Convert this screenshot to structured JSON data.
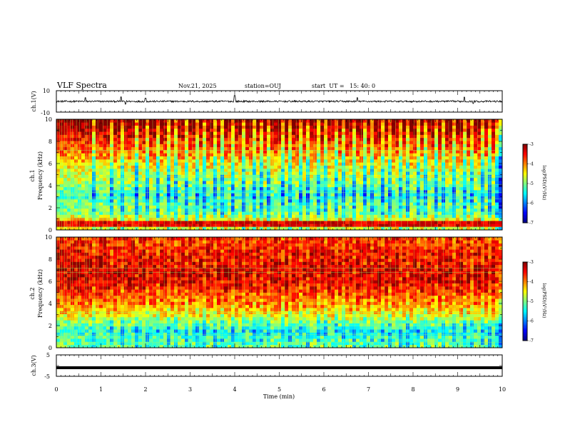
{
  "header": {
    "title": "VLF Spectra",
    "date": "Nov.21, 2025",
    "station": "station=OUJ",
    "start_ut": "start  UT =   15: 40: 0"
  },
  "chart_data": [
    {
      "type": "line",
      "name": "ch.1 waveform",
      "ylabel": "ch.1(V)",
      "ylim": [
        -10,
        10
      ],
      "y_tick_labels": [
        "10",
        "-10"
      ],
      "baseline": 0,
      "spikes": [
        {
          "x": 0.65,
          "y": 3.5
        },
        {
          "x": 1.45,
          "y": 4.2
        },
        {
          "x": 1.55,
          "y": -2.5
        },
        {
          "x": 2.0,
          "y": 3
        },
        {
          "x": 4.0,
          "y": 5.5
        },
        {
          "x": 6.75,
          "y": 3.5
        },
        {
          "x": 9.15,
          "y": 4
        },
        {
          "x": 9.35,
          "y": -2
        }
      ]
    },
    {
      "type": "heatmap",
      "name": "ch.1 spectrogram",
      "ylabel": "ch.1\nFrequency (kHz)",
      "ylabel_line1": "ch.1",
      "ylabel_line2": "Frequency (kHz)",
      "ylim": [
        0,
        10
      ],
      "y_tick_labels": [
        "0",
        "2",
        "4",
        "6",
        "8",
        "10"
      ],
      "profile": [
        -5.8,
        -5.3,
        -6.3,
        -6.4,
        -6.7,
        -6.5,
        -6.3,
        -6.2,
        -6.0,
        -5.7,
        -5.5,
        -5.3,
        -5.0,
        -4.8
      ],
      "bright_band_khz": 0.6,
      "lines_khz": [
        0.3,
        1.0,
        1.6,
        2.2,
        2.8,
        3.4,
        4.1,
        4.8,
        5.5,
        7.2
      ],
      "colorbar": {
        "label": "log(PSD)(V²/Hz)",
        "ticks": [
          "-3",
          "-4",
          "-5",
          "-6",
          "-7"
        ],
        "range": [
          -7,
          -3
        ]
      }
    },
    {
      "type": "heatmap",
      "name": "ch.2 spectrogram",
      "ylabel": "ch.2\nFrequency (kHz)",
      "ylabel_line1": "ch.2",
      "ylabel_line2": "Frequency (kHz)",
      "ylim": [
        0,
        10
      ],
      "y_tick_labels": [
        "0",
        "2",
        "4",
        "6",
        "8",
        "10"
      ],
      "profile": [
        -5.9,
        -6.0,
        -6.2,
        -5.7,
        -5.1,
        -4.7,
        -4.4,
        -4.1,
        -3.9,
        -3.8,
        -3.9,
        -3.9,
        -4.0,
        -4.0
      ],
      "lines_khz": [
        0.5,
        1.2,
        2.0,
        2.6,
        3.2,
        6.8,
        7.2
      ],
      "colorbar": {
        "label": "log(PSD)(V²/Hz)",
        "ticks": [
          "-3",
          "-4",
          "-5",
          "-6",
          "-7"
        ],
        "range": [
          -7,
          -3
        ]
      }
    },
    {
      "type": "line",
      "name": "ch.3 waveform",
      "ylabel": "ch.3(V)",
      "ylim": [
        -5,
        5
      ],
      "y_tick_labels": [
        "5",
        "-5"
      ],
      "value": -1
    }
  ],
  "x_axis": {
    "label": "Time (min)",
    "range": [
      0,
      10
    ],
    "tick_labels": [
      "0",
      "1",
      "2",
      "3",
      "4",
      "5",
      "6",
      "7",
      "8",
      "9",
      "10"
    ],
    "impulses_min": [
      0.03,
      0.07,
      0.12,
      0.18,
      0.24,
      0.31,
      0.36,
      0.45,
      0.52,
      0.64,
      0.68,
      0.74,
      0.85,
      0.93,
      1.05,
      1.14,
      1.25,
      1.37,
      1.48,
      1.56,
      1.71,
      1.85,
      1.93,
      2.04,
      2.16,
      2.31,
      2.42,
      2.55,
      2.68,
      2.79,
      2.95,
      3.05,
      3.18,
      3.34,
      3.46,
      3.58,
      3.72,
      3.86,
      3.99,
      4.08,
      4.22,
      4.35,
      4.48,
      4.62,
      4.77,
      4.86,
      4.98,
      5.12,
      5.24,
      5.38,
      5.52,
      5.64,
      5.78,
      5.92,
      6.05,
      6.16,
      6.31,
      6.44,
      6.57,
      6.7,
      6.84,
      6.96,
      7.08,
      7.22,
      7.36,
      7.49,
      7.61,
      7.74,
      7.88,
      8.02,
      8.15,
      8.28,
      8.41,
      8.55,
      8.68,
      8.8,
      8.94,
      9.06,
      9.2,
      9.33,
      9.45,
      9.58,
      9.72
    ]
  }
}
